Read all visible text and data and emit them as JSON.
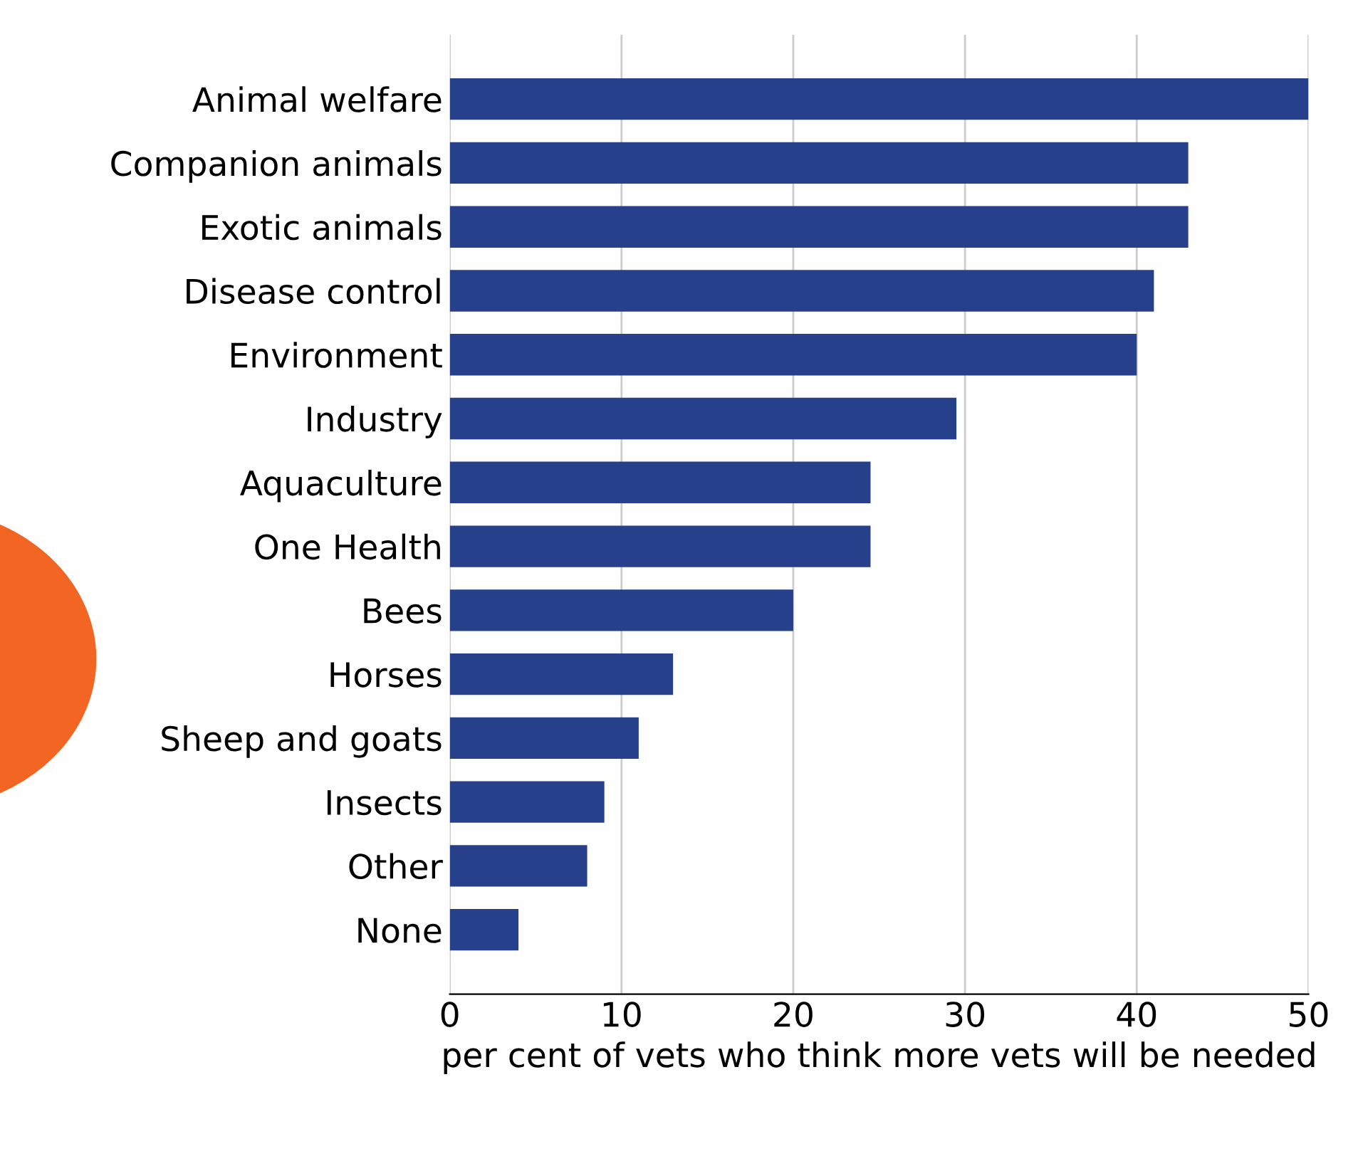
{
  "chart_data": {
    "type": "bar",
    "orientation": "horizontal",
    "categories": [
      "Animal welfare",
      "Companion animals",
      "Exotic animals",
      "Disease control",
      "Environment",
      "Industry",
      "Aquaculture",
      "One Health",
      "Bees",
      "Horses",
      "Sheep and goats",
      "Insects",
      "Other",
      "None"
    ],
    "values": [
      50,
      43,
      43,
      41,
      40,
      29.5,
      24.5,
      24.5,
      20,
      13,
      11,
      9,
      8,
      4
    ],
    "color": "#26408c",
    "xlabel": "per cent of vets who think more vets will be needed",
    "xlim": [
      0,
      50
    ],
    "xticks": [
      0,
      10,
      20,
      30,
      40,
      50
    ],
    "grid": "x"
  }
}
